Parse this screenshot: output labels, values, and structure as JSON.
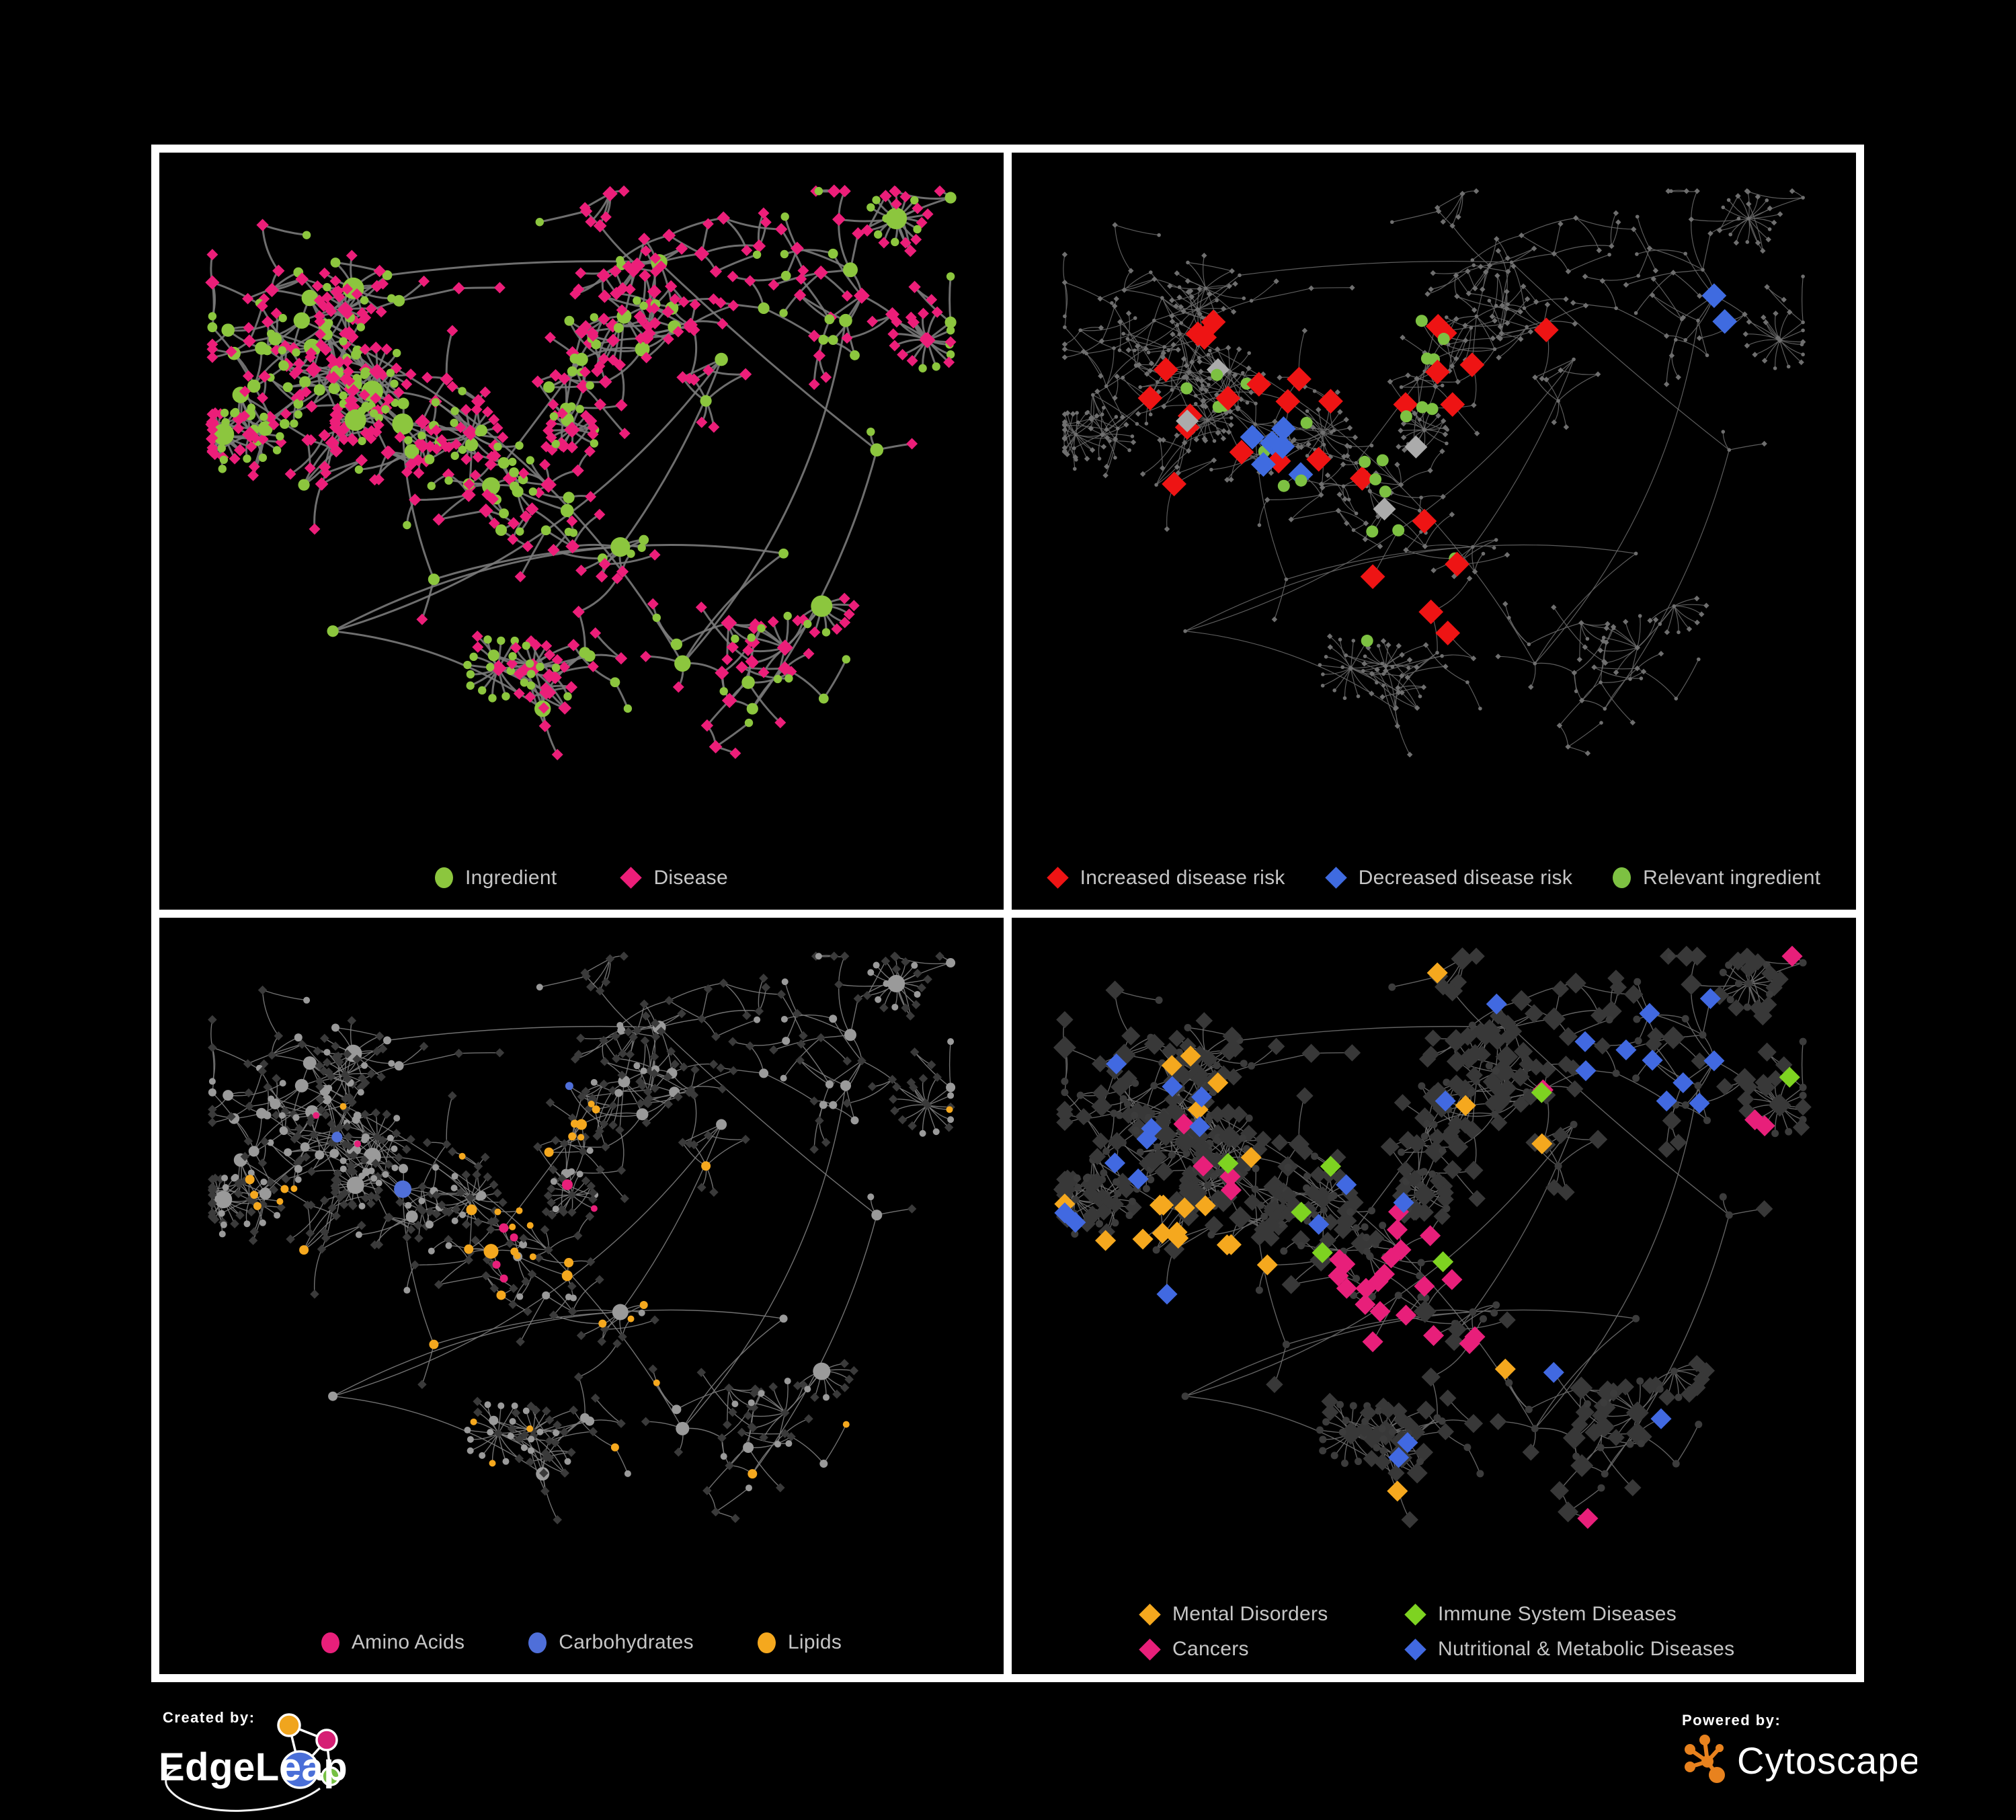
{
  "figure": {
    "background": "#000000",
    "frame_color": "#ffffff"
  },
  "panels": [
    {
      "id": "ingredient-disease-network",
      "legend": [
        {
          "shape": "circle",
          "color": "#8cc63e",
          "label": "Ingredient"
        },
        {
          "shape": "diamond",
          "color": "#ec1e79",
          "label": "Disease"
        }
      ]
    },
    {
      "id": "disease-risk-network",
      "legend": [
        {
          "shape": "diamond",
          "color": "#ee1414",
          "label": "Increased disease risk"
        },
        {
          "shape": "diamond",
          "color": "#3f6be0",
          "label": "Decreased disease risk"
        },
        {
          "shape": "circle",
          "color": "#7dc142",
          "label": "Relevant ingredient"
        }
      ]
    },
    {
      "id": "nutrient-class-network",
      "legend": [
        {
          "shape": "circle",
          "color": "#e81f7a",
          "label": "Amino Acids"
        },
        {
          "shape": "circle",
          "color": "#4f6fd9",
          "label": "Carbohydrates"
        },
        {
          "shape": "circle",
          "color": "#f5a81e",
          "label": "Lipids"
        }
      ]
    },
    {
      "id": "disease-class-network",
      "legend": [
        {
          "shape": "diamond",
          "color": "#f5a81e",
          "label": "Mental Disorders"
        },
        {
          "shape": "diamond",
          "color": "#7ed321",
          "label": "Immune System Diseases"
        },
        {
          "shape": "diamond",
          "color": "#e81f7a",
          "label": "Cancers"
        },
        {
          "shape": "diamond",
          "color": "#4169e1",
          "label": "Nutritional & Metabolic Diseases"
        }
      ]
    }
  ],
  "network_style": {
    "edge_colors": [
      "#7a7a7a",
      "#666666",
      "#7d7d7d",
      "#6b6b6b"
    ],
    "base_node_gray": "#9a9a9a",
    "dim_node_gray": "#3a3a3a",
    "tiny_node_gray": "#6f6f6f",
    "highlight_gray": "#ababab"
  },
  "footer": {
    "created_by_label": "Created by:",
    "created_by_name": "EdgeLeap",
    "powered_by_label": "Powered by:",
    "powered_by_name": "Cytoscape",
    "edgeleap_logo_colors": {
      "blue": "#4a6fd8",
      "orange": "#f0a51e",
      "pink": "#d61f74",
      "green": "#76c043"
    },
    "cytoscape_logo_color": "#e8821e"
  }
}
